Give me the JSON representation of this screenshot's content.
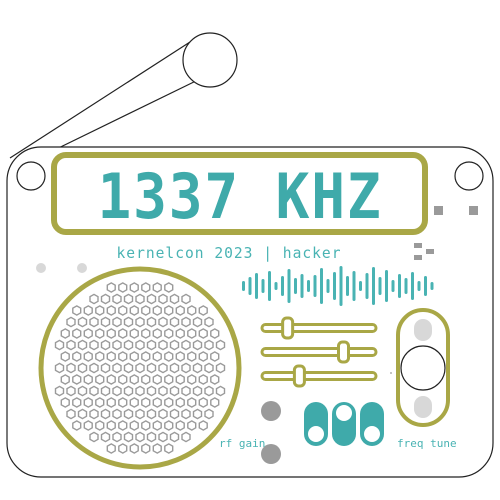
{
  "display": {
    "frequency": "1337 KHZ"
  },
  "caption": "kernelcon 2023 | hacker",
  "controls": {
    "rf_gain_label": "rf gain",
    "freq_tune_label": "freq tune"
  },
  "colors": {
    "olive": "#a9a746",
    "teal": "#3faaaa",
    "outline": "#222222",
    "grey": "#9a9a9a",
    "light_grey": "#d8d8d8"
  },
  "sliders": [
    {
      "name": "slider-1",
      "level": 0.18
    },
    {
      "name": "slider-2",
      "level": 0.75
    },
    {
      "name": "slider-3",
      "level": 0.3
    }
  ],
  "toggles": [
    {
      "name": "toggle-1",
      "state": "down"
    },
    {
      "name": "toggle-2",
      "state": "up"
    },
    {
      "name": "toggle-3",
      "state": "down"
    }
  ],
  "tuner": {
    "level": 0.5
  }
}
